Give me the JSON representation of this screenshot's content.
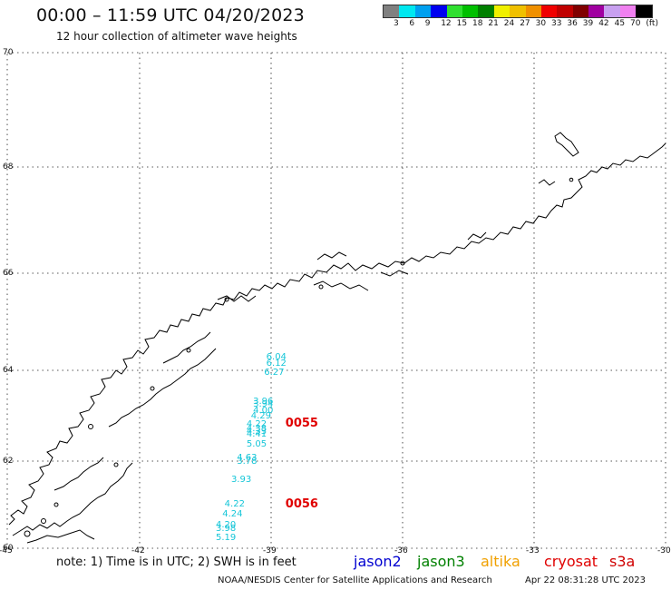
{
  "header": {
    "title": "00:00 – 11:59 UTC 04/20/2023",
    "subtitle": "12 hour collection of altimeter wave heights"
  },
  "legend": {
    "colors": [
      "#808080",
      "#00e8f0",
      "#00a0f0",
      "#0000f0",
      "#30e030",
      "#00c000",
      "#008000",
      "#f0f000",
      "#f0c000",
      "#f09000",
      "#f00000",
      "#c00000",
      "#800000",
      "#a000a0",
      "#c8a0f0",
      "#f080f0",
      "#000000"
    ],
    "labels": [
      "3",
      "6",
      "9",
      "12",
      "15",
      "18",
      "21",
      "24",
      "27",
      "30",
      "33",
      "36",
      "39",
      "42",
      "45",
      "70",
      "(ft)"
    ]
  },
  "axes": {
    "lat_labels": [
      "70",
      "68",
      "66",
      "64",
      "62",
      "60"
    ],
    "lon_labels": [
      "-45",
      "-42",
      "-39",
      "-36",
      "-33",
      "-30"
    ]
  },
  "observations": [
    {
      "swh": "6.04",
      "lat": 64.26,
      "lon": -38.85
    },
    {
      "swh": "6.12",
      "lat": 64.14,
      "lon": -38.85
    },
    {
      "swh": "6.27",
      "lat": 63.94,
      "lon": -38.9
    },
    {
      "swh": "3.96",
      "lat": 63.3,
      "lon": -39.15
    },
    {
      "swh": "3.94",
      "lat": 63.24,
      "lon": -39.15
    },
    {
      "swh": "4.00",
      "lat": 63.1,
      "lon": -39.15
    },
    {
      "swh": "4.29",
      "lat": 62.99,
      "lon": -39.2
    },
    {
      "swh": "4.22",
      "lat": 62.8,
      "lon": -39.3
    },
    {
      "swh": "4.38",
      "lat": 62.7,
      "lon": -39.3
    },
    {
      "swh": "4.33",
      "lat": 62.64,
      "lon": -39.3
    },
    {
      "swh": "4.41",
      "lat": 62.58,
      "lon": -39.3
    },
    {
      "swh": "5.05",
      "lat": 62.37,
      "lon": -39.3
    },
    {
      "swh": "4.63",
      "lat": 62.07,
      "lon": -39.52
    },
    {
      "swh": "3.78",
      "lat": 61.98,
      "lon": -39.52
    },
    {
      "swh": "3.93",
      "lat": 61.56,
      "lon": -39.65
    },
    {
      "swh": "4.22",
      "lat": 60.99,
      "lon": -39.8
    },
    {
      "swh": "4.24",
      "lat": 60.78,
      "lon": -39.85
    },
    {
      "swh": "4.20",
      "lat": 60.52,
      "lon": -40.0
    },
    {
      "swh": "3.98",
      "lat": 60.44,
      "lon": -40.0
    },
    {
      "swh": "5.19",
      "lat": 60.23,
      "lon": -40.0
    }
  ],
  "time_labels": [
    {
      "text": "0055",
      "lat": 62.82,
      "lon": -38.62
    },
    {
      "text": "0056",
      "lat": 61.0,
      "lon": -38.62
    }
  ],
  "footer": {
    "note": "note: 1) Time is in UTC; 2) SWH is in feet",
    "satellites": [
      {
        "name": "jason2",
        "color": "#0000d0"
      },
      {
        "name": "jason3",
        "color": "#008000"
      },
      {
        "name": "altika",
        "color": "#f0a000"
      },
      {
        "name": "cryosat",
        "color": "#e00000"
      },
      {
        "name": "s3a",
        "color": "#d00000"
      }
    ],
    "credit": "NOAA/NESDIS Center for Satellite Applications and Research",
    "timestamp": "Apr 22 08:31:28 UTC 2023"
  }
}
